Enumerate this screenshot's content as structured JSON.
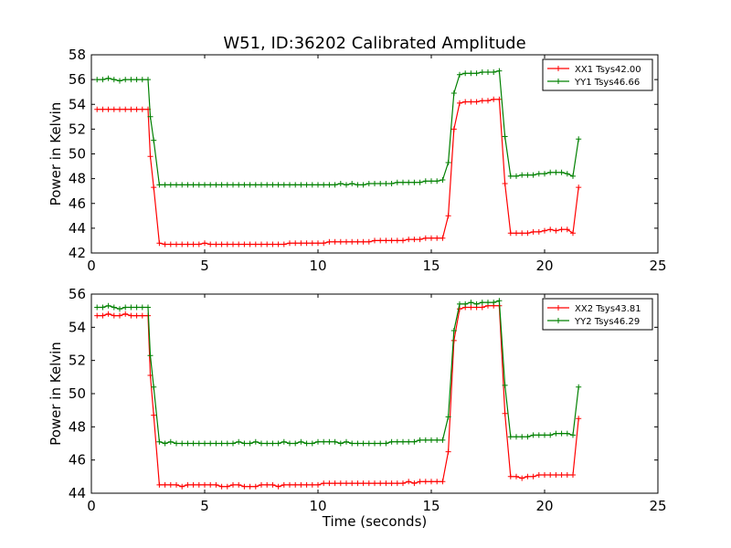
{
  "title": "W51, ID:36202 Calibrated Amplitude",
  "chart_data": [
    {
      "type": "line",
      "title": "W51, ID:36202 Calibrated Amplitude",
      "xlabel": "",
      "ylabel": "Power in Kelvin",
      "xlim": [
        0,
        25
      ],
      "ylim": [
        42,
        58
      ],
      "xticks": [
        "0",
        "5",
        "10",
        "15",
        "20",
        "25"
      ],
      "yticks": [
        "42",
        "44",
        "46",
        "48",
        "50",
        "52",
        "54",
        "56",
        "58"
      ],
      "grid": false,
      "legend_position": "top-right",
      "x": [
        0.25,
        0.5,
        0.75,
        1.0,
        1.25,
        1.5,
        1.75,
        2.0,
        2.25,
        2.5,
        2.6,
        2.75,
        3.0,
        3.25,
        3.5,
        3.75,
        4.0,
        4.25,
        4.5,
        4.75,
        5.0,
        5.25,
        5.5,
        5.75,
        6.0,
        6.25,
        6.5,
        6.75,
        7.0,
        7.25,
        7.5,
        7.75,
        8.0,
        8.25,
        8.5,
        8.75,
        9.0,
        9.25,
        9.5,
        9.75,
        10.0,
        10.25,
        10.5,
        10.75,
        11.0,
        11.25,
        11.5,
        11.75,
        12.0,
        12.25,
        12.5,
        12.75,
        13.0,
        13.25,
        13.5,
        13.75,
        14.0,
        14.25,
        14.5,
        14.75,
        15.0,
        15.25,
        15.5,
        15.75,
        16.0,
        16.25,
        16.5,
        16.75,
        17.0,
        17.25,
        17.5,
        17.75,
        18.0,
        18.25,
        18.5,
        18.75,
        19.0,
        19.25,
        19.5,
        19.75,
        20.0,
        20.25,
        20.5,
        20.75,
        21.0,
        21.25,
        21.5
      ],
      "series": [
        {
          "name": "XX1 Tsys42.00",
          "color": "#ff0000",
          "values": [
            53.6,
            53.6,
            53.6,
            53.6,
            53.6,
            53.6,
            53.6,
            53.6,
            53.6,
            53.6,
            49.8,
            47.3,
            42.8,
            42.7,
            42.7,
            42.7,
            42.7,
            42.7,
            42.7,
            42.7,
            42.8,
            42.7,
            42.7,
            42.7,
            42.7,
            42.7,
            42.7,
            42.7,
            42.7,
            42.7,
            42.7,
            42.7,
            42.7,
            42.7,
            42.7,
            42.8,
            42.8,
            42.8,
            42.8,
            42.8,
            42.8,
            42.8,
            42.9,
            42.9,
            42.9,
            42.9,
            42.9,
            42.9,
            42.9,
            42.9,
            43.0,
            43.0,
            43.0,
            43.0,
            43.0,
            43.0,
            43.1,
            43.1,
            43.1,
            43.2,
            43.2,
            43.2,
            43.2,
            45.0,
            52.0,
            54.1,
            54.2,
            54.2,
            54.2,
            54.3,
            54.3,
            54.4,
            54.4,
            47.6,
            43.6,
            43.6,
            43.6,
            43.6,
            43.7,
            43.7,
            43.8,
            43.9,
            43.8,
            43.9,
            43.9,
            43.6,
            47.3
          ]
        },
        {
          "name": "YY1 Tsys46.66",
          "color": "#008000",
          "values": [
            56.0,
            56.0,
            56.1,
            56.0,
            55.9,
            56.0,
            56.0,
            56.0,
            56.0,
            56.0,
            53.0,
            51.1,
            47.5,
            47.5,
            47.5,
            47.5,
            47.5,
            47.5,
            47.5,
            47.5,
            47.5,
            47.5,
            47.5,
            47.5,
            47.5,
            47.5,
            47.5,
            47.5,
            47.5,
            47.5,
            47.5,
            47.5,
            47.5,
            47.5,
            47.5,
            47.5,
            47.5,
            47.5,
            47.5,
            47.5,
            47.5,
            47.5,
            47.5,
            47.5,
            47.6,
            47.5,
            47.6,
            47.5,
            47.5,
            47.6,
            47.6,
            47.6,
            47.6,
            47.6,
            47.7,
            47.7,
            47.7,
            47.7,
            47.7,
            47.8,
            47.8,
            47.8,
            47.9,
            49.3,
            54.9,
            56.4,
            56.5,
            56.5,
            56.5,
            56.6,
            56.6,
            56.6,
            56.7,
            51.4,
            48.2,
            48.2,
            48.3,
            48.3,
            48.3,
            48.4,
            48.4,
            48.5,
            48.5,
            48.5,
            48.4,
            48.2,
            51.2
          ]
        }
      ]
    },
    {
      "type": "line",
      "title": "",
      "xlabel": "Time (seconds)",
      "ylabel": "Power in Kelvin",
      "xlim": [
        0,
        25
      ],
      "ylim": [
        44,
        56
      ],
      "xticks": [
        "0",
        "5",
        "10",
        "15",
        "20",
        "25"
      ],
      "yticks": [
        "44",
        "46",
        "48",
        "50",
        "52",
        "54",
        "56"
      ],
      "grid": false,
      "legend_position": "top-right",
      "x": [
        0.25,
        0.5,
        0.75,
        1.0,
        1.25,
        1.5,
        1.75,
        2.0,
        2.25,
        2.5,
        2.6,
        2.75,
        3.0,
        3.25,
        3.5,
        3.75,
        4.0,
        4.25,
        4.5,
        4.75,
        5.0,
        5.25,
        5.5,
        5.75,
        6.0,
        6.25,
        6.5,
        6.75,
        7.0,
        7.25,
        7.5,
        7.75,
        8.0,
        8.25,
        8.5,
        8.75,
        9.0,
        9.25,
        9.5,
        9.75,
        10.0,
        10.25,
        10.5,
        10.75,
        11.0,
        11.25,
        11.5,
        11.75,
        12.0,
        12.25,
        12.5,
        12.75,
        13.0,
        13.25,
        13.5,
        13.75,
        14.0,
        14.25,
        14.5,
        14.75,
        15.0,
        15.25,
        15.5,
        15.75,
        16.0,
        16.25,
        16.5,
        16.75,
        17.0,
        17.25,
        17.5,
        17.75,
        18.0,
        18.25,
        18.5,
        18.75,
        19.0,
        19.25,
        19.5,
        19.75,
        20.0,
        20.25,
        20.5,
        20.75,
        21.0,
        21.25,
        21.5
      ],
      "series": [
        {
          "name": "XX2 Tsys43.81",
          "color": "#ff0000",
          "values": [
            54.7,
            54.7,
            54.8,
            54.7,
            54.7,
            54.8,
            54.7,
            54.7,
            54.7,
            54.7,
            51.1,
            48.7,
            44.5,
            44.5,
            44.5,
            44.5,
            44.4,
            44.5,
            44.5,
            44.5,
            44.5,
            44.5,
            44.5,
            44.4,
            44.4,
            44.5,
            44.5,
            44.4,
            44.4,
            44.4,
            44.5,
            44.5,
            44.5,
            44.4,
            44.5,
            44.5,
            44.5,
            44.5,
            44.5,
            44.5,
            44.5,
            44.6,
            44.6,
            44.6,
            44.6,
            44.6,
            44.6,
            44.6,
            44.6,
            44.6,
            44.6,
            44.6,
            44.6,
            44.6,
            44.6,
            44.6,
            44.7,
            44.6,
            44.7,
            44.7,
            44.7,
            44.7,
            44.7,
            46.5,
            53.2,
            55.1,
            55.2,
            55.2,
            55.2,
            55.2,
            55.3,
            55.3,
            55.3,
            48.8,
            45.0,
            45.0,
            44.9,
            45.0,
            45.0,
            45.1,
            45.1,
            45.1,
            45.1,
            45.1,
            45.1,
            45.1,
            48.5
          ]
        },
        {
          "name": "YY2 Tsys46.29",
          "color": "#008000",
          "values": [
            55.2,
            55.2,
            55.3,
            55.2,
            55.1,
            55.2,
            55.2,
            55.2,
            55.2,
            55.2,
            52.3,
            50.4,
            47.1,
            47.0,
            47.1,
            47.0,
            47.0,
            47.0,
            47.0,
            47.0,
            47.0,
            47.0,
            47.0,
            47.0,
            47.0,
            47.0,
            47.1,
            47.0,
            47.0,
            47.1,
            47.0,
            47.0,
            47.0,
            47.0,
            47.1,
            47.0,
            47.0,
            47.1,
            47.0,
            47.0,
            47.1,
            47.1,
            47.1,
            47.1,
            47.0,
            47.1,
            47.0,
            47.0,
            47.0,
            47.0,
            47.0,
            47.0,
            47.0,
            47.1,
            47.1,
            47.1,
            47.1,
            47.1,
            47.2,
            47.2,
            47.2,
            47.2,
            47.2,
            48.6,
            53.8,
            55.4,
            55.4,
            55.5,
            55.4,
            55.5,
            55.5,
            55.5,
            55.6,
            50.5,
            47.4,
            47.4,
            47.4,
            47.4,
            47.5,
            47.5,
            47.5,
            47.5,
            47.6,
            47.6,
            47.6,
            47.5,
            50.4
          ]
        }
      ]
    }
  ]
}
